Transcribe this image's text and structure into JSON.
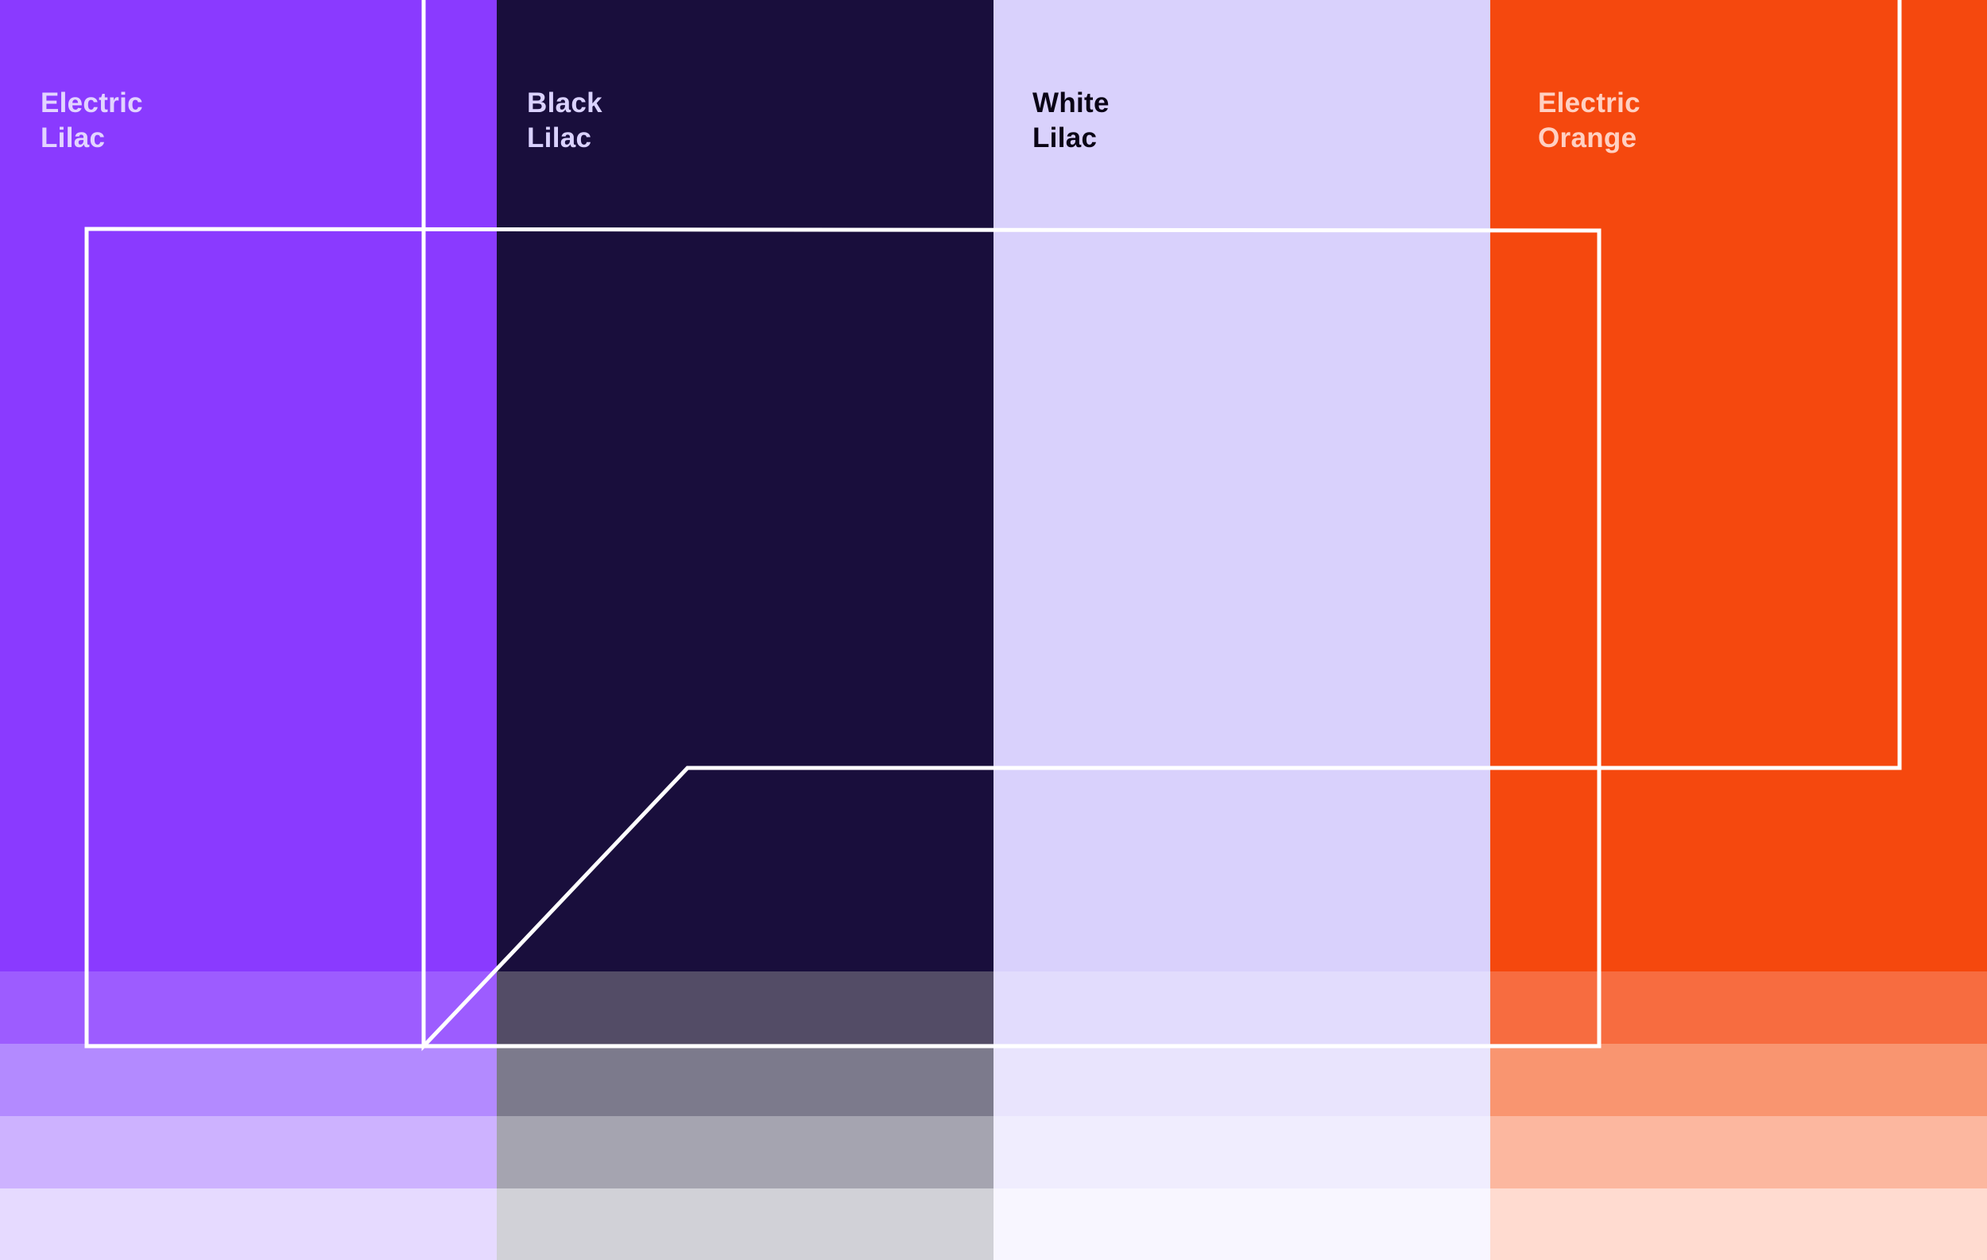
{
  "swatches": [
    {
      "name_line1": "Electric",
      "name_line2": "Lilac",
      "color": "#8A3AFF",
      "label_color": "#E2D4FF",
      "tints": [
        "#9D5CFF",
        "#B38AFF",
        "#CDB2FF",
        "#E6DAFF"
      ]
    },
    {
      "name_line1": "Black",
      "name_line2": "Lilac",
      "color": "#190E3C",
      "label_color": "#DAD2FF",
      "tints": [
        "#534C66",
        "#7C7A8C",
        "#A5A4B0",
        "#D1D1D7"
      ]
    },
    {
      "name_line1": "White",
      "name_line2": "Lilac",
      "color": "#D9D1FC",
      "label_color": "#0A0416",
      "tints": [
        "#E2DCFD",
        "#E9E4FD",
        "#F0EDFE",
        "#F8F6FF"
      ]
    },
    {
      "name_line1": "Electric",
      "name_line2": "Orange",
      "color": "#F5480E",
      "label_color": "#FFD0C2",
      "tints": [
        "#F76C40",
        "#F99570",
        "#FCB79F",
        "#FFDBD0"
      ]
    }
  ],
  "outline_color": "#FFFFFF"
}
